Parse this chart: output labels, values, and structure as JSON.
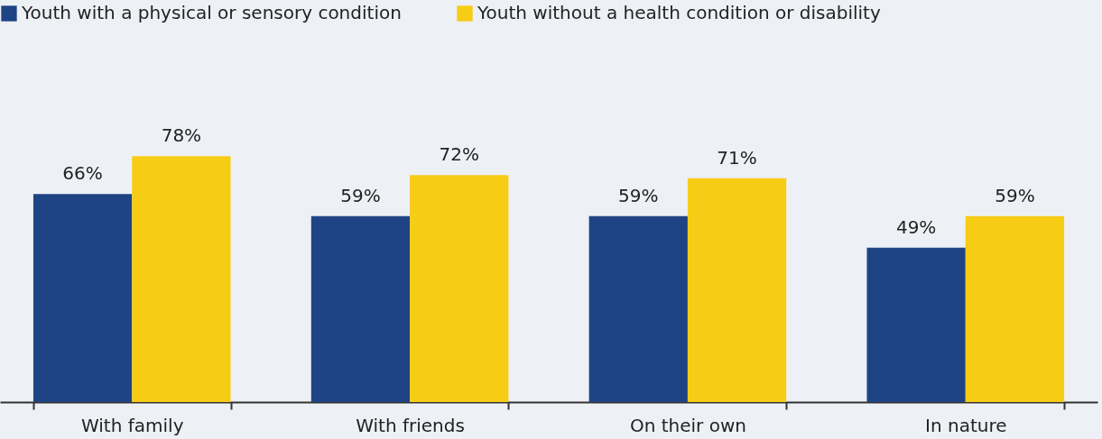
{
  "chart_data": {
    "type": "bar",
    "categories": [
      "With family",
      "With friends",
      "On their own",
      "In nature"
    ],
    "series": [
      {
        "name": "Youth with a physical or sensory condition",
        "color": "#1f4485",
        "values": [
          66,
          59,
          59,
          49
        ],
        "value_labels": [
          "66%",
          "59%",
          "59%",
          "49%"
        ]
      },
      {
        "name": "Youth without a health condition or disability",
        "color": "#f7cc14",
        "values": [
          78,
          72,
          71,
          59
        ],
        "value_labels": [
          "78%",
          "72%",
          "71%",
          "59%"
        ]
      }
    ],
    "legend": "top left"
  }
}
